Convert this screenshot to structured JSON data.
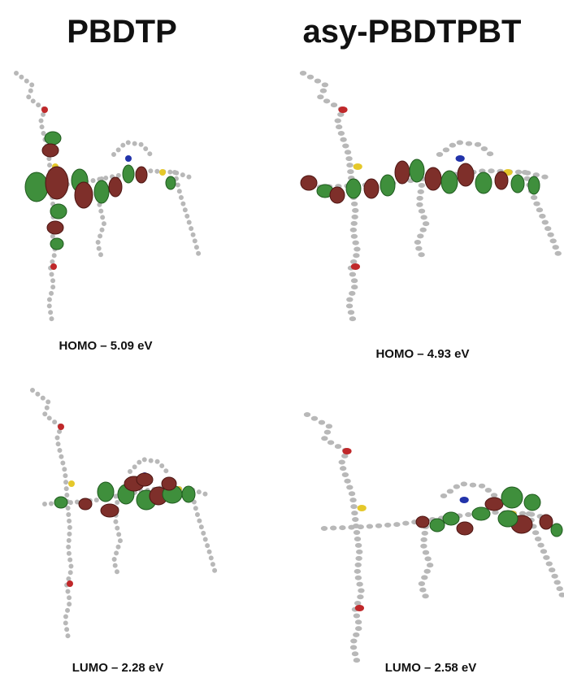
{
  "columns": [
    {
      "title": "PBDTP",
      "panels": [
        {
          "label": "HOMO – 5.09 eV"
        },
        {
          "label": "LUMO – 2.28 eV"
        }
      ]
    },
    {
      "title": "asy-PBDTPBT",
      "panels": [
        {
          "label": "HOMO – 4.93 eV"
        },
        {
          "label": "LUMO – 2.58 eV"
        }
      ]
    }
  ]
}
